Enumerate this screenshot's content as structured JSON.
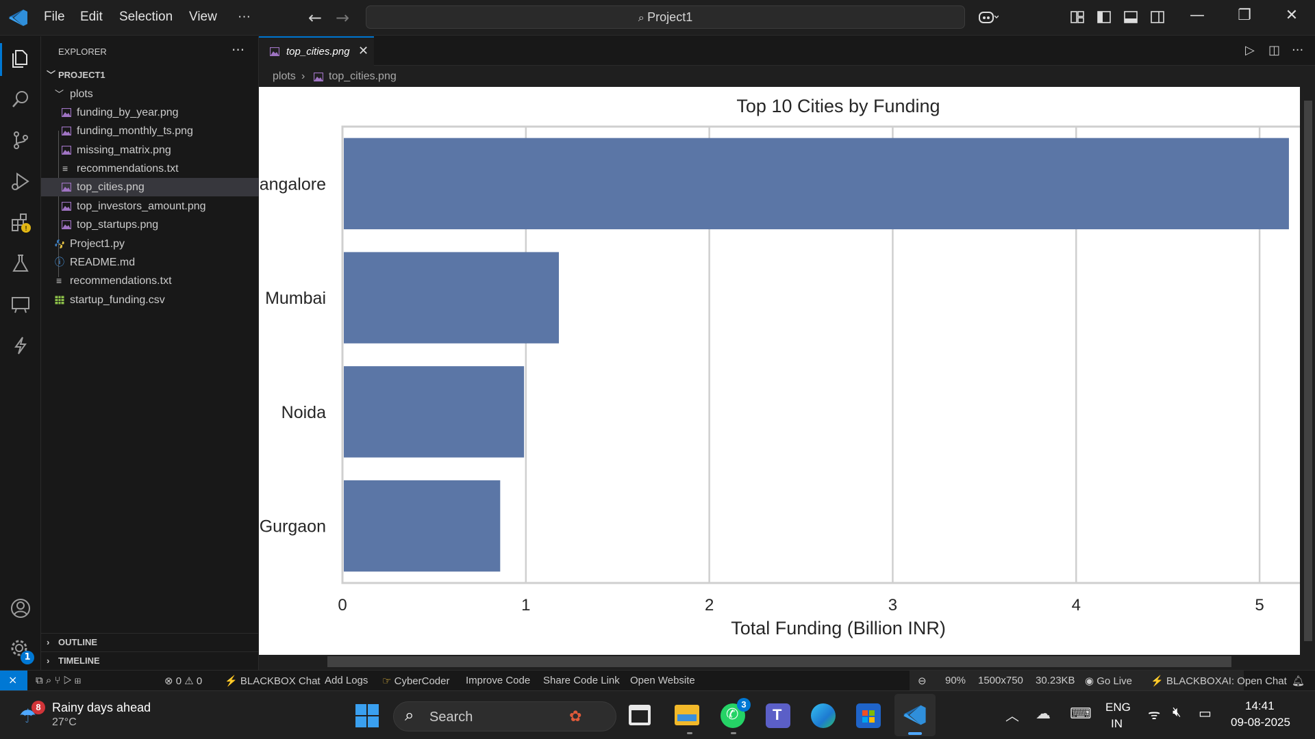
{
  "titlebar": {
    "menu": [
      "File",
      "Edit",
      "Selection",
      "View",
      "···"
    ],
    "search_label": "Project1",
    "icons": [
      "vscode-logo-icon",
      "back-arrow-icon",
      "forward-arrow-icon",
      "copilot-icon",
      "layout-icon",
      "toggle-sidebar-icon",
      "toggle-panel-icon",
      "toggle-secondary-sidebar-icon",
      "minimize-icon",
      "restore-icon",
      "close-icon"
    ]
  },
  "activitybar": {
    "icons": [
      "explorer-icon",
      "search-icon",
      "source-control-icon",
      "run-debug-icon",
      "extensions-icon",
      "testing-icon",
      "remote-explorer-icon",
      "blackbox-icon",
      "accounts-icon",
      "manage-icon"
    ],
    "manage_badge": "1"
  },
  "sidebar": {
    "header": "EXPLORER",
    "project": "PROJECT1",
    "folder": "plots",
    "plot_files": [
      "funding_by_year.png",
      "funding_monthly_ts.png",
      "missing_matrix.png",
      "recommendations.txt",
      "top_cities.png",
      "top_investors_amount.png",
      "top_startups.png"
    ],
    "root_files": [
      "Project1.py",
      "README.md",
      "recommendations.txt",
      "startup_funding.csv"
    ],
    "outline": "OUTLINE",
    "timeline": "TIMELINE"
  },
  "editor": {
    "tab_label": "top_cities.png",
    "breadcrumb": [
      "plots",
      "top_cities.png"
    ]
  },
  "chart_data": {
    "type": "bar",
    "orientation": "horizontal",
    "title": "Top 10 Cities by Funding",
    "xlabel": "Total Funding (Billion INR)",
    "ylabel": "",
    "categories": [
      "angalore",
      "Mumbai",
      "Noida",
      "Gurgaon"
    ],
    "values": [
      5.16,
      1.18,
      0.99,
      0.86
    ],
    "xticks": [
      "0",
      "1",
      "2",
      "3",
      "4",
      "5"
    ],
    "xlim": [
      0,
      5.22
    ],
    "grid": true,
    "bar_color": "#5b76a6"
  },
  "statusbar": {
    "problems_errors": "0",
    "problems_warnings": "0",
    "items": [
      "BLACKBOX Chat",
      "Add Logs",
      "CyberCoder",
      "Improve Code",
      "Share Code Link",
      "Open Website"
    ],
    "zoom": "90%",
    "dimensions": "1500x750",
    "filesize": "30.23KB",
    "golive": "Go Live",
    "blackboxai": "BLACKBOXAI: Open Chat"
  },
  "taskbar": {
    "weather_title": "Rainy days ahead",
    "weather_temp": "27°C",
    "weather_badge": "8",
    "search": "Search",
    "whatsapp_badge": "3",
    "lang_top": "ENG",
    "lang_bottom": "IN",
    "time": "14:41",
    "date": "09-08-2025"
  },
  "colors": {
    "accent": "#0078d4",
    "bar": "#5b76a6"
  }
}
